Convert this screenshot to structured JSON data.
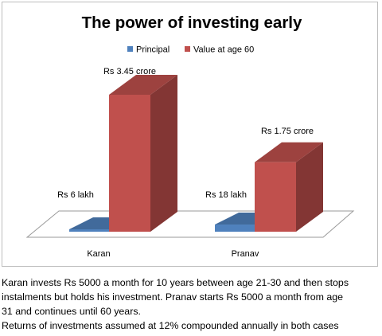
{
  "chart_data": {
    "type": "bar",
    "title": "The power of investing early",
    "categories": [
      "Karan",
      "Pranav"
    ],
    "series": [
      {
        "name": "Principal",
        "values": [
          0.06,
          0.18
        ],
        "labels": [
          "Rs 6 lakh",
          "Rs 18 lakh"
        ],
        "color": "#4f81bd"
      },
      {
        "name": "Value at age 60",
        "values": [
          3.45,
          1.75
        ],
        "labels": [
          "Rs 3.45 crore",
          "Rs 1.75 crore"
        ],
        "color": "#c0504d"
      }
    ],
    "value_unit": "crore",
    "ylim": [
      0,
      3.45
    ],
    "legend_position": "top",
    "grid": false,
    "style": "3d-column"
  },
  "caption": {
    "lines": [
      "Karan invests Rs 5000 a month for 10 years between age 21-30 and then stops",
      "instalments but holds his investment. Pranav starts Rs 5000 a month from age",
      "31 and continues until 60 years.",
      "Returns of investments assumed at 12% compounded annually in both cases"
    ]
  }
}
